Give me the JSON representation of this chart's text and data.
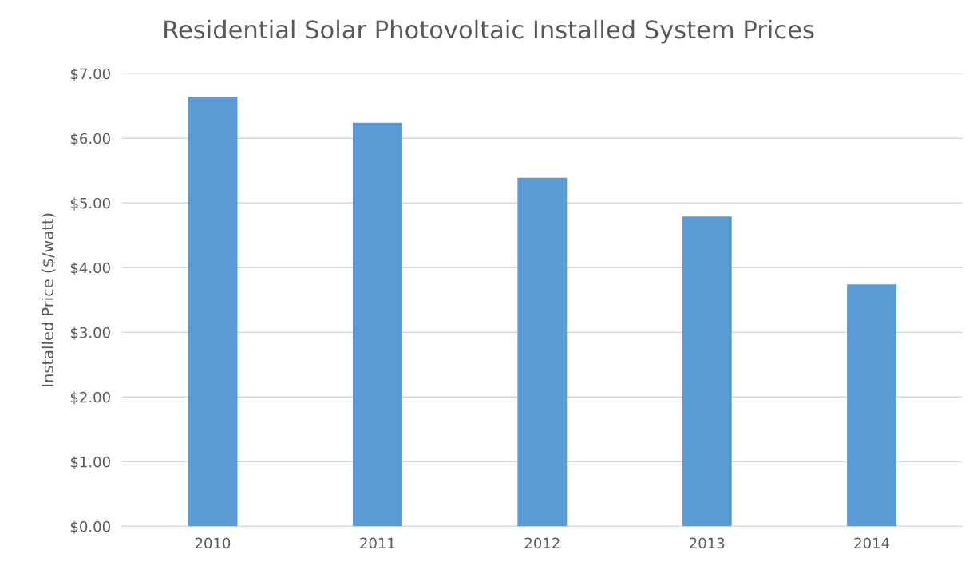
{
  "chart_data": {
    "type": "bar",
    "title": "Residential Solar Photovoltaic Installed System Prices",
    "ylabel": "Installed Price ($/watt)",
    "categories": [
      "2010",
      "2011",
      "2012",
      "2013",
      "2014"
    ],
    "values": [
      6.64,
      6.24,
      5.39,
      4.79,
      3.74
    ],
    "color": "#5b9bd5",
    "ylim": [
      0,
      7
    ],
    "yticks": [
      {
        "value": 0,
        "label": "$0.00"
      },
      {
        "value": 1,
        "label": "$1.00"
      },
      {
        "value": 2,
        "label": "$2.00"
      },
      {
        "value": 3,
        "label": "$3.00"
      },
      {
        "value": 4,
        "label": "$4.00"
      },
      {
        "value": 5,
        "label": "$5.00"
      },
      {
        "value": 6,
        "label": "$6.00"
      },
      {
        "value": 7,
        "label": "$7.00"
      }
    ],
    "grid": "y"
  }
}
